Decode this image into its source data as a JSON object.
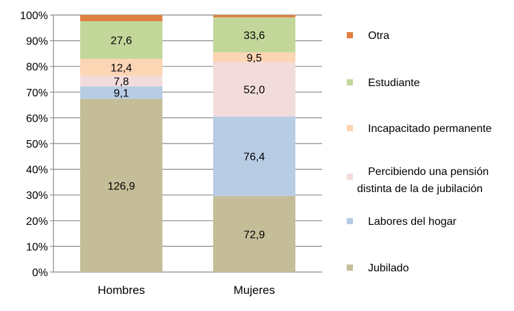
{
  "chart_data": {
    "type": "bar",
    "stacked": "percent",
    "categories": [
      "Hombres",
      "Mujeres"
    ],
    "series": [
      {
        "name": "Jubilado",
        "values": [
          126.9,
          72.9
        ],
        "labels": [
          "126,9",
          "72,9"
        ],
        "color": "#c4bd97"
      },
      {
        "name": "Labores del hogar",
        "values": [
          9.1,
          76.4
        ],
        "labels": [
          "9,1",
          "76,4"
        ],
        "color": "#b8cce4"
      },
      {
        "name": "Percibiendo una pensión distinta de la de jubilación",
        "legend_lines": [
          "Percibiendo una pensión",
          "distinta de la de jubilación"
        ],
        "values": [
          7.8,
          52.0
        ],
        "labels": [
          "7,8",
          "52,0"
        ],
        "color": "#f2dcdb"
      },
      {
        "name": "Incapacitado permanente",
        "values": [
          12.4,
          9.5
        ],
        "labels": [
          "12,4",
          "9,5"
        ],
        "color": "#fcd5b4"
      },
      {
        "name": "Estudiante",
        "values": [
          27.6,
          33.6
        ],
        "labels": [
          "27,6",
          "33,6"
        ],
        "color": "#c4d79b"
      },
      {
        "name": "Otra",
        "values": [
          4.5,
          2.2
        ],
        "labels": [
          "",
          ""
        ],
        "color": "#e08040"
      }
    ],
    "yticks": [
      "0%",
      "10%",
      "20%",
      "30%",
      "40%",
      "50%",
      "60%",
      "70%",
      "80%",
      "90%",
      "100%"
    ],
    "ylim": [
      0,
      100
    ],
    "grid": true,
    "legend": "right",
    "title": "",
    "xlabel": "",
    "ylabel": ""
  }
}
